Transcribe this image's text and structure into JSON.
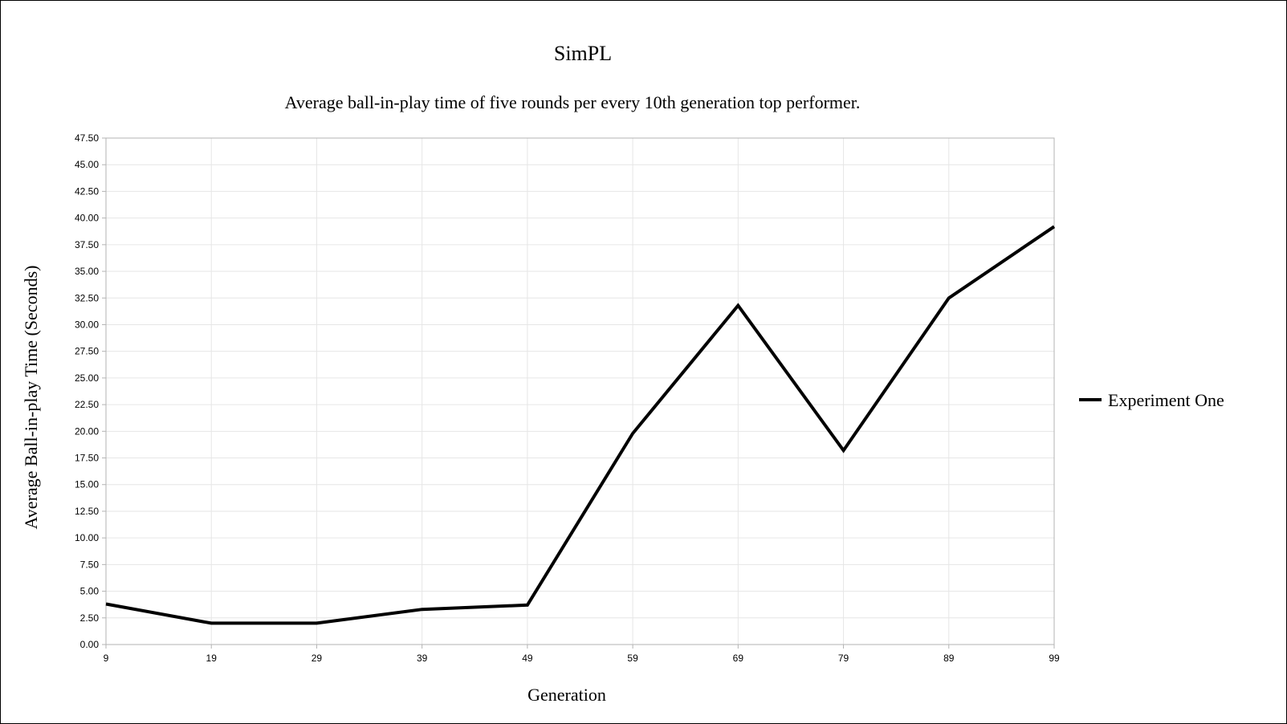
{
  "chart_data": {
    "type": "line",
    "title": "SimPL",
    "subtitle": "Average ball-in-play time of five rounds per every 10th generation top performer.",
    "xlabel": "Generation",
    "ylabel": "Average Ball-in-play Time (Seconds)",
    "categories": [
      "9",
      "19",
      "29",
      "39",
      "49",
      "59",
      "69",
      "79",
      "89",
      "99"
    ],
    "ylim": [
      0,
      47.5
    ],
    "ytick_step": 2.5,
    "ytick_labels": [
      "0.00",
      "2.50",
      "5.00",
      "7.50",
      "10.00",
      "12.50",
      "15.00",
      "17.50",
      "20.00",
      "22.50",
      "25.00",
      "27.50",
      "30.00",
      "32.50",
      "35.00",
      "37.50",
      "40.00",
      "42.50",
      "45.00",
      "47.50"
    ],
    "grid": true,
    "legend_position": "right",
    "series": [
      {
        "name": "Experiment One",
        "color": "#000000",
        "values": [
          3.8,
          2.0,
          2.0,
          3.3,
          3.7,
          19.8,
          31.8,
          18.2,
          32.5,
          39.2
        ]
      }
    ]
  }
}
